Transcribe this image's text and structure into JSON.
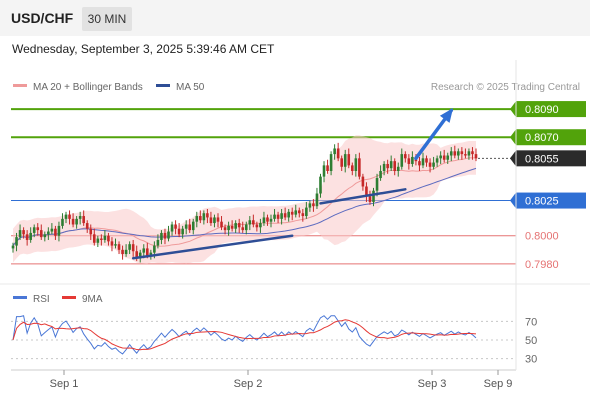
{
  "header": {
    "symbol": "USD/CHF",
    "interval": "30 MIN",
    "datetime": "Wednesday, September 3, 2025 5:39:46 AM CET"
  },
  "legend": {
    "ma20_bb": "MA 20 + Bollinger Bands",
    "ma50": "MA 50",
    "credit": "Research © 2025 Trading Central",
    "rsi": "RSI",
    "ma9": "9MA"
  },
  "colors": {
    "up": "#2e7d32",
    "down": "#c62828",
    "bollinger_fill": "#f9c9c9",
    "ma20": "#ef9a9a",
    "ma50": "#5c6bc0",
    "resistance": "#52a30b",
    "support": "#e57373",
    "pivot": "#2f6fd4",
    "trendline": "#2e4e96",
    "rsi_line": "#4a77d6",
    "rsi_ma": "#e53935",
    "last_price_bg": "#2b2b2b"
  },
  "chart_data": [
    {
      "type": "candlestick",
      "ylim": [
        0.7965,
        0.81
      ],
      "x_ticks": [
        "Sep 1",
        "Sep 2",
        "Sep 3",
        "Sep 9"
      ],
      "last_price": 0.8055,
      "levels": [
        {
          "value": 0.809,
          "label": "0.8090",
          "kind": "resistance"
        },
        {
          "value": 0.807,
          "label": "0.8070",
          "kind": "resistance"
        },
        {
          "value": 0.8025,
          "label": "0.8025",
          "kind": "pivot"
        },
        {
          "value": 0.8,
          "label": "0.8000",
          "kind": "support"
        },
        {
          "value": 0.798,
          "label": "0.7980",
          "kind": "support"
        }
      ],
      "close_series": [
        0.7993,
        0.7999,
        0.8004,
        0.8001,
        0.7997,
        0.8002,
        0.8006,
        0.8004,
        0.7999,
        0.8001,
        0.8003,
        0.8005,
        0.8,
        0.8007,
        0.8012,
        0.8015,
        0.8012,
        0.8008,
        0.8012,
        0.8014,
        0.8009,
        0.8005,
        0.8001,
        0.7995,
        0.7998,
        0.7997,
        0.8,
        0.7996,
        0.7993,
        0.7994,
        0.799,
        0.7987,
        0.799,
        0.7994,
        0.7989,
        0.7984,
        0.7988,
        0.7991,
        0.7986,
        0.7988,
        0.7993,
        0.7997,
        0.8002,
        0.7998,
        0.8003,
        0.8008,
        0.8005,
        0.8001,
        0.8005,
        0.8008,
        0.8004,
        0.801,
        0.8014,
        0.8011,
        0.8016,
        0.8013,
        0.8009,
        0.8013,
        0.801,
        0.8006,
        0.8004,
        0.8007,
        0.8005,
        0.8009,
        0.8006,
        0.8004,
        0.8008,
        0.8011,
        0.8008,
        0.8006,
        0.8009,
        0.8013,
        0.801,
        0.8012,
        0.8015,
        0.8012,
        0.8016,
        0.8013,
        0.8017,
        0.8015,
        0.8018,
        0.8016,
        0.8014,
        0.802,
        0.8023,
        0.8021,
        0.803,
        0.8042,
        0.805,
        0.8046,
        0.8058,
        0.8062,
        0.8055,
        0.8049,
        0.8058,
        0.805,
        0.8046,
        0.8055,
        0.8042,
        0.8035,
        0.8028,
        0.8024,
        0.8032,
        0.8041,
        0.8046,
        0.8051,
        0.8048,
        0.8053,
        0.8046,
        0.8049,
        0.8058,
        0.8055,
        0.8051,
        0.8056,
        0.8053,
        0.805,
        0.8055,
        0.8052,
        0.8049,
        0.8052,
        0.8055,
        0.8057,
        0.8054,
        0.8057,
        0.806,
        0.8057,
        0.806,
        0.8058,
        0.8057,
        0.806,
        0.8058,
        0.8055
      ],
      "trendlines": [
        {
          "from": [
            34,
            0.7984
          ],
          "to": [
            79,
            0.8
          ]
        },
        {
          "from": [
            87,
            0.8023
          ],
          "to": [
            111,
            0.8033
          ]
        }
      ],
      "projection": {
        "from": [
          114,
          0.8055
        ],
        "to": [
          124,
          0.8089
        ]
      }
    },
    {
      "type": "line",
      "name": "RSI",
      "yticks": [
        70,
        50,
        30
      ],
      "ylim": [
        20,
        80
      ]
    }
  ]
}
